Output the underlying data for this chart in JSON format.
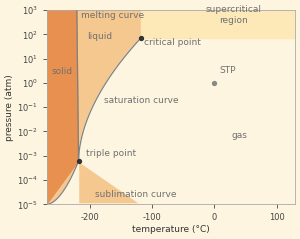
{
  "xlabel": "temperature (°C)",
  "ylabel": "pressure (atm)",
  "xlim": [
    -270,
    130
  ],
  "ylim_log": [
    -5,
    3
  ],
  "bg_cream": "#fdf5e0",
  "solid_color": "#e89050",
  "liquid_color": "#f5c890",
  "supercritical_color": "#fde8b8",
  "gas_color": "#fdf5e0",
  "curve_color": "#808080",
  "text_color": "#707070",
  "triple_point": [
    -218.8,
    0.0006
  ],
  "critical_point": [
    -118.0,
    72.9
  ],
  "stp_point": [
    0,
    1
  ],
  "fontsize": 6.5,
  "tick_fontsize": 6
}
